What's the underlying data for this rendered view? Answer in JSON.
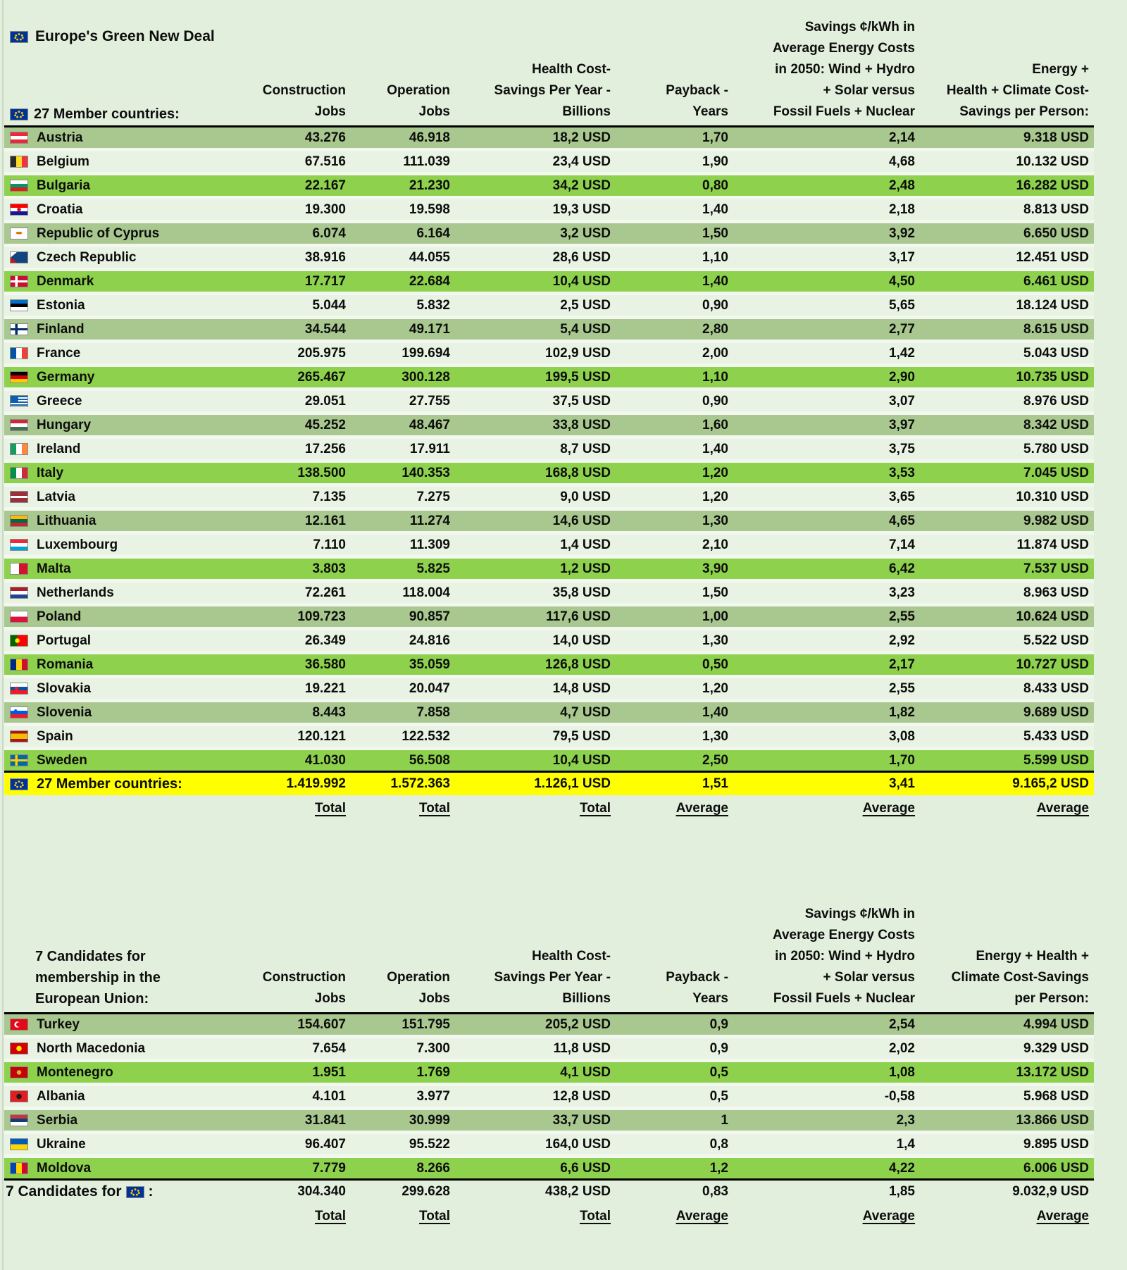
{
  "title": "Europe's Green New Deal",
  "eu_flag_style": "background: radial-gradient(circle at 50% 24%, #ffcc00 0 1.2px, transparent 1.7px), radial-gradient(circle at 32% 36%, #ffcc00 0 1.2px, transparent 1.7px), radial-gradient(circle at 68% 36%, #ffcc00 0 1.2px, transparent 1.7px), radial-gradient(circle at 28% 58%, #ffcc00 0 1.2px, transparent 1.7px), radial-gradient(circle at 72% 58%, #ffcc00 0 1.2px, transparent 1.7px), radial-gradient(circle at 40% 74%, #ffcc00 0 1.2px, transparent 1.7px), radial-gradient(circle at 60% 74%, #ffcc00 0 1.2px, transparent 1.7px) #003399",
  "colors": {
    "page_background": "#e2efdc",
    "row_medium_green": "#a9c88f",
    "row_light_green": "#e9f3e4",
    "row_bright_green": "#8ed14d",
    "total_highlight_yellow": "#ffff00",
    "text": "#0d0d0d"
  },
  "table1": {
    "label": "27 Member countries:",
    "headers": [
      "Construction\nJobs",
      "Operation\nJobs",
      "Health Cost-\nSavings Per Year -\nBillions",
      "Payback -\nYears",
      "Savings ¢/kWh in\nAverage Energy Costs\nin 2050: Wind + Hydro\n+ Solar versus\nFossil Fuels + Nuclear",
      "Energy +\nHealth + Climate Cost-\nSavings per Person:"
    ],
    "rows": [
      {
        "country": "Austria",
        "shade": "a",
        "flag": "linear-gradient(to bottom, #ed2939 0 33%, #ffffff 33% 67%, #ed2939 67%)",
        "values": [
          "43.276",
          "46.918",
          "18,2 USD",
          "1,70",
          "2,14",
          "9.318 USD"
        ]
      },
      {
        "country": "Belgium",
        "shade": "b",
        "flag": "linear-gradient(to right, #2d2926 0 33%, #fdda24 33% 67%, #ef3340 67%)",
        "values": [
          "67.516",
          "111.039",
          "23,4 USD",
          "1,90",
          "4,68",
          "10.132 USD"
        ]
      },
      {
        "country": "Bulgaria",
        "shade": "c",
        "flag": "linear-gradient(to bottom, #ffffff 0 33%, #00966e 33% 67%, #d62612 67%)",
        "values": [
          "22.167",
          "21.230",
          "34,2 USD",
          "0,80",
          "2,48",
          "16.282 USD"
        ]
      },
      {
        "country": "Croatia",
        "shade": "b",
        "flag": "radial-gradient(circle at 50% 50%, #d7141a 0 2.5px, transparent 3px), linear-gradient(to bottom, #ff0000 0 33%, #ffffff 33% 67%, #171796 67%)",
        "values": [
          "19.300",
          "19.598",
          "19,3 USD",
          "1,40",
          "2,18",
          "8.813 USD"
        ]
      },
      {
        "country": "Republic of Cyprus",
        "shade": "a",
        "flag": "radial-gradient(ellipse 7px 3px at 50% 45%, #d57800 0 60%, transparent 65%) #ffffff",
        "values": [
          "6.074",
          "6.164",
          "3,2 USD",
          "1,50",
          "3,92",
          "6.650 USD"
        ]
      },
      {
        "country": "Czech Republic",
        "shade": "b",
        "flag": "conic-gradient(from 50deg at 0% 50%, #11457e 0 80deg, transparent 80deg), linear-gradient(to bottom, #ffffff 0 50%, #d7141a 50%)",
        "values": [
          "38.916",
          "44.055",
          "28,6 USD",
          "1,10",
          "3,17",
          "12.451 USD"
        ]
      },
      {
        "country": "Denmark",
        "shade": "c",
        "flag": "linear-gradient(to bottom, transparent 0 39%, #ffffff 39% 61%, transparent 61%), linear-gradient(to right, transparent 0 27%, #ffffff 27% 42%, transparent 42%) #c8102e",
        "values": [
          "17.717",
          "22.684",
          "10,4 USD",
          "1,40",
          "4,50",
          "6.461 USD"
        ]
      },
      {
        "country": "Estonia",
        "shade": "b",
        "flag": "linear-gradient(to bottom, #0072ce 0 33%, #000000 33% 67%, #ffffff 67%)",
        "values": [
          "5.044",
          "5.832",
          "2,5 USD",
          "0,90",
          "5,65",
          "18.124 USD"
        ]
      },
      {
        "country": "Finland",
        "shade": "a",
        "flag": "linear-gradient(to bottom, transparent 0 39%, #002f6c 39% 61%, transparent 61%), linear-gradient(to right, transparent 0 27%, #002f6c 27% 42%, transparent 42%) #ffffff",
        "values": [
          "34.544",
          "49.171",
          "5,4 USD",
          "2,80",
          "2,77",
          "8.615 USD"
        ]
      },
      {
        "country": "France",
        "shade": "b",
        "flag": "linear-gradient(to right, #0055a4 0 33%, #ffffff 33% 67%, #ef4135 67%)",
        "values": [
          "205.975",
          "199.694",
          "102,9 USD",
          "2,00",
          "1,42",
          "5.043 USD"
        ]
      },
      {
        "country": "Germany",
        "shade": "c",
        "flag": "linear-gradient(to bottom, #000000 0 33%, #dd0000 33% 67%, #ffce00 67%)",
        "values": [
          "265.467",
          "300.128",
          "199,5 USD",
          "1,10",
          "2,90",
          "10.735 USD"
        ]
      },
      {
        "country": "Greece",
        "shade": "b",
        "flag": "linear-gradient(#0d5eaf, #0d5eaf) left top / 45% 55% no-repeat, repeating-linear-gradient(to bottom, #0d5eaf 0 2px, #ffffff 2px 4px)",
        "values": [
          "29.051",
          "27.755",
          "37,5 USD",
          "0,90",
          "3,07",
          "8.976 USD"
        ]
      },
      {
        "country": "Hungary",
        "shade": "a",
        "flag": "linear-gradient(to bottom, #ce2939 0 33%, #ffffff 33% 67%, #477050 67%)",
        "values": [
          "45.252",
          "48.467",
          "33,8 USD",
          "1,60",
          "3,97",
          "8.342 USD"
        ]
      },
      {
        "country": "Ireland",
        "shade": "b",
        "flag": "linear-gradient(to right, #169b62 0 33%, #ffffff 33% 67%, #ff883e 67%)",
        "values": [
          "17.256",
          "17.911",
          "8,7 USD",
          "1,40",
          "3,75",
          "5.780 USD"
        ]
      },
      {
        "country": "Italy",
        "shade": "c",
        "flag": "linear-gradient(to right, #009246 0 33%, #ffffff 33% 67%, #ce2b37 67%)",
        "values": [
          "138.500",
          "140.353",
          "168,8 USD",
          "1,20",
          "3,53",
          "7.045 USD"
        ]
      },
      {
        "country": "Latvia",
        "shade": "b",
        "flag": "linear-gradient(to bottom, #9e3039 0 40%, #ffffff 40% 60%, #9e3039 60%)",
        "values": [
          "7.135",
          "7.275",
          "9,0 USD",
          "1,20",
          "3,65",
          "10.310 USD"
        ]
      },
      {
        "country": "Lithuania",
        "shade": "a",
        "flag": "linear-gradient(to bottom, #fdb913 0 33%, #006a44 33% 67%, #c1272d 67%)",
        "values": [
          "12.161",
          "11.274",
          "14,6 USD",
          "1,30",
          "4,65",
          "9.982 USD"
        ]
      },
      {
        "country": "Luxembourg",
        "shade": "b",
        "flag": "linear-gradient(to bottom, #ed2939 0 33%, #ffffff 33% 67%, #00a1de 67%)",
        "values": [
          "7.110",
          "11.309",
          "1,4 USD",
          "2,10",
          "7,14",
          "11.874 USD"
        ]
      },
      {
        "country": "Malta",
        "shade": "c",
        "flag": "linear-gradient(to right, #ffffff 0 50%, #cf142b 50%)",
        "values": [
          "3.803",
          "5.825",
          "1,2 USD",
          "3,90",
          "6,42",
          "7.537 USD"
        ]
      },
      {
        "country": "Netherlands",
        "shade": "b",
        "flag": "linear-gradient(to bottom, #ae1c28 0 33%, #ffffff 33% 67%, #21468b 67%)",
        "values": [
          "72.261",
          "118.004",
          "35,8 USD",
          "1,50",
          "3,23",
          "8.963 USD"
        ]
      },
      {
        "country": "Poland",
        "shade": "a",
        "flag": "linear-gradient(to bottom, #ffffff 0 50%, #dc143c 50%)",
        "values": [
          "109.723",
          "90.857",
          "117,6 USD",
          "1,00",
          "2,55",
          "10.624 USD"
        ]
      },
      {
        "country": "Portugal",
        "shade": "b",
        "flag": "radial-gradient(circle at 40% 50%, #ffe900 0 3px, transparent 3.5px), linear-gradient(to right, #006600 0 40%, #ff0000 40%)",
        "values": [
          "26.349",
          "24.816",
          "14,0 USD",
          "1,30",
          "2,92",
          "5.522 USD"
        ]
      },
      {
        "country": "Romania",
        "shade": "c",
        "flag": "linear-gradient(to right, #002b7f 0 33%, #fcd116 33% 67%, #ce1126 67%)",
        "values": [
          "36.580",
          "35.059",
          "126,8 USD",
          "0,50",
          "2,17",
          "10.727 USD"
        ]
      },
      {
        "country": "Slovakia",
        "shade": "b",
        "flag": "radial-gradient(circle at 35% 50%, #ee1c25 0 2.5px, transparent 3px), linear-gradient(to bottom, #ffffff 0 33%, #0b4ea2 33% 67%, #ee1c25 67%)",
        "values": [
          "19.221",
          "20.047",
          "14,8 USD",
          "1,20",
          "2,55",
          "8.433 USD"
        ]
      },
      {
        "country": "Slovenia",
        "shade": "a",
        "flag": "radial-gradient(circle at 30% 35%, #005ce6 0 2px, transparent 2.5px), linear-gradient(to bottom, #ffffff 0 33%, #005ce6 33% 67%, #ed1c24 67%)",
        "values": [
          "8.443",
          "7.858",
          "4,7 USD",
          "1,40",
          "1,82",
          "9.689 USD"
        ]
      },
      {
        "country": "Spain",
        "shade": "b",
        "flag": "linear-gradient(to bottom, #aa151b 0 25%, #f1bf00 25% 75%, #aa151b 75%)",
        "values": [
          "120.121",
          "122.532",
          "79,5 USD",
          "1,30",
          "3,08",
          "5.433 USD"
        ]
      },
      {
        "country": "Sweden",
        "shade": "c",
        "flag": "linear-gradient(to bottom, transparent 0 39%, #fecc02 39% 61%, transparent 61%), linear-gradient(to right, transparent 0 27%, #fecc02 27% 42%, transparent 42%) #006aa7",
        "values": [
          "41.030",
          "56.508",
          "10,4 USD",
          "2,50",
          "1,70",
          "5.599 USD"
        ]
      }
    ],
    "total": {
      "label": "27 Member countries:",
      "values": [
        "1.419.992",
        "1.572.363",
        "1.126,1 USD",
        "1,51",
        "3,41",
        "9.165,2 USD"
      ]
    },
    "footer_labels": [
      "Total",
      "Total",
      "Total",
      "Average",
      "Average",
      "Average"
    ]
  },
  "table2": {
    "label": "7 Candidates for\nmembership in the\nEuropean Union:",
    "headers": [
      "Construction\nJobs",
      "Operation\nJobs",
      "Health Cost-\nSavings Per Year -\nBillions",
      "Payback -\nYears",
      "Savings ¢/kWh in\nAverage Energy Costs\nin 2050: Wind + Hydro\n+ Solar versus\nFossil Fuels + Nuclear",
      "Energy + Health +\nClimate Cost-Savings\nper Person:"
    ],
    "rows": [
      {
        "country": "Turkey",
        "shade": "a",
        "flag": "radial-gradient(circle at 47% 50%, #e30a17 0 3px, transparent 3.4px), radial-gradient(circle at 40% 50%, #ffffff 0 4px, transparent 4.4px) #e30a17",
        "values": [
          "154.607",
          "151.795",
          "205,2 USD",
          "0,9",
          "2,54",
          "4.994 USD"
        ]
      },
      {
        "country": "North Macedonia",
        "shade": "b",
        "flag": "radial-gradient(circle at 50% 50%, #ffe600 0 3.5px, transparent 4px) #d20000",
        "values": [
          "7.654",
          "7.300",
          "11,8 USD",
          "0,9",
          "2,02",
          "9.329 USD"
        ]
      },
      {
        "country": "Montenegro",
        "shade": "c",
        "flag": "radial-gradient(circle at 50% 50%, #d4af37 0 3px, transparent 3.5px) #c40308",
        "values": [
          "1.951",
          "1.769",
          "4,1 USD",
          "0,5",
          "1,08",
          "13.172 USD"
        ]
      },
      {
        "country": "Albania",
        "shade": "b",
        "flag": "radial-gradient(circle at 50% 50%, #1a1a1a 0 3.5px, transparent 4px) #e41e20",
        "values": [
          "4.101",
          "3.977",
          "12,8 USD",
          "0,5",
          "-0,58",
          "5.968 USD"
        ]
      },
      {
        "country": "Serbia",
        "shade": "a",
        "flag": "linear-gradient(to bottom, #c6363c 0 33%, #0c4077 33% 67%, #ffffff 67%)",
        "values": [
          "31.841",
          "30.999",
          "33,7 USD",
          "1",
          "2,3",
          "13.866 USD"
        ]
      },
      {
        "country": "Ukraine",
        "shade": "b",
        "flag": "linear-gradient(to bottom, #005bbb 0 50%, #ffd500 50%)",
        "values": [
          "96.407",
          "95.522",
          "164,0 USD",
          "0,8",
          "1,4",
          "9.895 USD"
        ]
      },
      {
        "country": "Moldova",
        "shade": "c",
        "flag": "linear-gradient(to right, #0046ae 0 33%, #ffd200 33% 67%, #cc092f 67%)",
        "values": [
          "7.779",
          "8.266",
          "6,6 USD",
          "1,2",
          "4,22",
          "6.006 USD"
        ]
      }
    ],
    "total": {
      "label_prefix": "7 Candidates for",
      "label_suffix": ":",
      "values": [
        "304.340",
        "299.628",
        "438,2 USD",
        "0,83",
        "1,85",
        "9.032,9 USD"
      ]
    },
    "footer_labels": [
      "Total",
      "Total",
      "Total",
      "Average",
      "Average",
      "Average"
    ]
  }
}
